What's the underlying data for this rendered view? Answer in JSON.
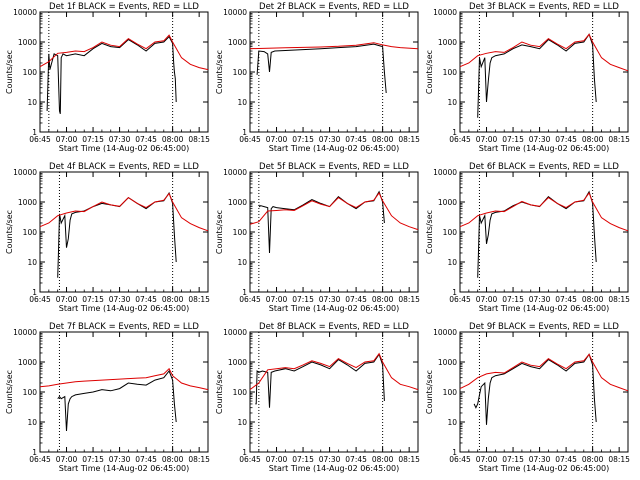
{
  "figure": {
    "panels": [
      {
        "title": "Det 1f BLACK = Events, RED = LLD"
      },
      {
        "title": "Det 2f BLACK = Events, RED = LLD"
      },
      {
        "title": "Det 3f BLACK = Events, RED = LLD"
      },
      {
        "title": "Det 4f BLACK = Events, RED = LLD"
      },
      {
        "title": "Det 5f BLACK = Events, RED = LLD"
      },
      {
        "title": "Det 6f BLACK = Events, RED = LLD"
      },
      {
        "title": "Det 7f BLACK = Events, RED = LLD"
      },
      {
        "title": "Det 8f BLACK = Events, RED = LLD"
      },
      {
        "title": "Det 9f BLACK = Events, RED = LLD"
      }
    ],
    "xlabel": "Start Time (14-Aug-02 06:45:00)",
    "ylabel": "Counts/sec",
    "x_ticks": [
      "06:45",
      "07:00",
      "07:15",
      "07:30",
      "07:45",
      "08:00",
      "08:15"
    ],
    "y_ticks": [
      "1",
      "10",
      "100",
      "1000",
      "10000"
    ],
    "colors": {
      "events": "#000000",
      "lld": "#dd0000",
      "axes": "#000000",
      "background": "#ffffff"
    }
  },
  "chart_data": [
    {
      "type": "line",
      "title": "Det 1f BLACK = Events, RED = LLD",
      "xlabel": "Start Time (14-Aug-02 06:45:00)",
      "ylabel": "Counts/sec",
      "x_unit": "minutes",
      "xlim": [
        0,
        95
      ],
      "ylim": [
        1,
        10000
      ],
      "yscale": "log",
      "markers": [
        5,
        75
      ],
      "series": [
        {
          "name": "Events",
          "color": "#000000",
          "x": [
            4,
            4.5,
            5,
            5.6,
            8,
            10,
            11,
            11.5,
            12,
            13,
            15,
            20,
            25,
            30,
            35,
            40,
            45,
            50,
            55,
            60,
            65,
            70,
            73,
            75,
            75.6,
            76,
            76.5,
            77
          ],
          "y": [
            5,
            50,
            400,
            120,
            400,
            350,
            5,
            4,
            300,
            400,
            350,
            400,
            350,
            600,
            900,
            700,
            650,
            1200,
            800,
            500,
            900,
            1000,
            1500,
            900,
            200,
            100,
            60,
            10
          ]
        },
        {
          "name": "LLD",
          "color": "#dd0000",
          "x": [
            0,
            5,
            10,
            15,
            20,
            25,
            30,
            35,
            40,
            45,
            50,
            55,
            60,
            65,
            70,
            73,
            75,
            80,
            85,
            90,
            95
          ],
          "y": [
            150,
            220,
            420,
            450,
            500,
            480,
            650,
            1000,
            780,
            700,
            1300,
            850,
            600,
            1000,
            1100,
            1700,
            1000,
            300,
            180,
            140,
            120
          ]
        }
      ]
    },
    {
      "type": "line",
      "title": "Det 2f BLACK = Events, RED = LLD",
      "xlabel": "Start Time (14-Aug-02 06:45:00)",
      "ylabel": "Counts/sec",
      "x_unit": "minutes",
      "xlim": [
        0,
        95
      ],
      "ylim": [
        1,
        10000
      ],
      "yscale": "log",
      "markers": [
        5,
        75
      ],
      "series": [
        {
          "name": "Events",
          "color": "#000000",
          "x": [
            4,
            5,
            8,
            10,
            11,
            12,
            14,
            20,
            30,
            40,
            50,
            60,
            70,
            75,
            76,
            77
          ],
          "y": [
            80,
            500,
            480,
            400,
            100,
            450,
            500,
            520,
            560,
            600,
            650,
            700,
            850,
            700,
            100,
            20
          ]
        },
        {
          "name": "LLD",
          "color": "#dd0000",
          "x": [
            0,
            10,
            20,
            30,
            40,
            50,
            60,
            70,
            75,
            80,
            85,
            95
          ],
          "y": [
            600,
            620,
            640,
            660,
            680,
            720,
            780,
            950,
            800,
            700,
            650,
            600
          ]
        }
      ]
    },
    {
      "type": "line",
      "title": "Det 3f BLACK = Events, RED = LLD",
      "xlabel": "Start Time (14-Aug-02 06:45:00)",
      "ylabel": "Counts/sec",
      "x_unit": "minutes",
      "xlim": [
        0,
        95
      ],
      "ylim": [
        1,
        10000
      ],
      "yscale": "log",
      "markers": [
        11,
        75
      ],
      "series": [
        {
          "name": "Events",
          "color": "#000000",
          "x": [
            10,
            10.5,
            11,
            12,
            14,
            15,
            16,
            17,
            18,
            20,
            25,
            30,
            35,
            40,
            45,
            50,
            55,
            60,
            65,
            70,
            73,
            75,
            76,
            77
          ],
          "y": [
            3,
            30,
            300,
            150,
            300,
            10,
            50,
            200,
            300,
            350,
            400,
            600,
            800,
            700,
            600,
            1200,
            800,
            500,
            900,
            1000,
            1800,
            800,
            60,
            10
          ]
        },
        {
          "name": "LLD",
          "color": "#dd0000",
          "x": [
            0,
            5,
            10,
            15,
            20,
            25,
            30,
            35,
            40,
            45,
            50,
            55,
            60,
            65,
            70,
            73,
            75,
            80,
            85,
            90,
            95
          ],
          "y": [
            150,
            200,
            350,
            420,
            480,
            450,
            650,
            1000,
            780,
            700,
            1300,
            850,
            600,
            1000,
            1100,
            1800,
            1000,
            300,
            180,
            140,
            110
          ]
        }
      ]
    },
    {
      "type": "line",
      "title": "Det 4f BLACK = Events, RED = LLD",
      "xlabel": "Start Time (14-Aug-02 06:45:00)",
      "ylabel": "Counts/sec",
      "x_unit": "minutes",
      "xlim": [
        0,
        95
      ],
      "ylim": [
        1,
        10000
      ],
      "yscale": "log",
      "markers": [
        11,
        75
      ],
      "series": [
        {
          "name": "Events",
          "color": "#000000",
          "x": [
            10,
            10.5,
            11,
            12,
            14,
            15,
            16,
            17,
            18,
            20,
            25,
            30,
            35,
            40,
            45,
            50,
            55,
            60,
            65,
            70,
            73,
            75,
            76,
            77
          ],
          "y": [
            3,
            30,
            400,
            200,
            350,
            30,
            60,
            250,
            400,
            450,
            500,
            700,
            900,
            800,
            700,
            1400,
            900,
            600,
            1000,
            1100,
            2000,
            900,
            80,
            10
          ]
        },
        {
          "name": "LLD",
          "color": "#dd0000",
          "x": [
            0,
            5,
            10,
            15,
            20,
            25,
            30,
            35,
            40,
            45,
            50,
            55,
            60,
            65,
            70,
            73,
            75,
            80,
            85,
            90,
            95
          ],
          "y": [
            150,
            200,
            350,
            430,
            500,
            480,
            700,
            1000,
            800,
            720,
            1400,
            900,
            650,
            1000,
            1150,
            1900,
            1000,
            300,
            190,
            140,
            110
          ]
        }
      ]
    },
    {
      "type": "line",
      "title": "Det 5f BLACK = Events, RED = LLD",
      "xlabel": "Start Time (14-Aug-02 06:45:00)",
      "ylabel": "Counts/sec",
      "x_unit": "minutes",
      "xlim": [
        0,
        95
      ],
      "ylim": [
        1,
        10000
      ],
      "yscale": "log",
      "markers": [
        5,
        75
      ],
      "series": [
        {
          "name": "Events",
          "color": "#000000",
          "x": [
            5,
            5.5,
            6,
            8,
            10,
            11,
            12,
            13,
            15,
            20,
            25,
            30,
            35,
            40,
            45,
            50,
            55,
            60,
            65,
            70,
            73,
            75,
            76
          ],
          "y": [
            800,
            700,
            750,
            700,
            650,
            20,
            600,
            700,
            650,
            600,
            550,
            800,
            1200,
            900,
            700,
            1500,
            900,
            600,
            1000,
            1100,
            2200,
            1000,
            200
          ]
        },
        {
          "name": "LLD",
          "color": "#dd0000",
          "x": [
            0,
            5,
            10,
            15,
            20,
            25,
            30,
            35,
            40,
            45,
            50,
            55,
            60,
            65,
            70,
            73,
            75,
            80,
            85,
            90,
            95
          ],
          "y": [
            180,
            220,
            500,
            520,
            550,
            520,
            750,
            1100,
            850,
            700,
            1400,
            900,
            650,
            1000,
            1150,
            2000,
            1100,
            350,
            200,
            150,
            120
          ]
        }
      ]
    },
    {
      "type": "line",
      "title": "Det 6f BLACK = Events, RED = LLD",
      "xlabel": "Start Time (14-Aug-02 06:45:00)",
      "ylabel": "Counts/sec",
      "x_unit": "minutes",
      "xlim": [
        0,
        95
      ],
      "ylim": [
        1,
        10000
      ],
      "yscale": "log",
      "markers": [
        11,
        75
      ],
      "series": [
        {
          "name": "Events",
          "color": "#000000",
          "x": [
            10,
            10.5,
            11,
            12,
            14,
            15,
            16,
            17,
            18,
            20,
            25,
            30,
            35,
            40,
            45,
            50,
            55,
            60,
            65,
            70,
            73,
            75,
            76,
            77
          ],
          "y": [
            3,
            30,
            350,
            200,
            350,
            40,
            80,
            250,
            400,
            450,
            500,
            750,
            1000,
            800,
            700,
            1500,
            900,
            600,
            1000,
            1100,
            2200,
            900,
            80,
            10
          ]
        },
        {
          "name": "LLD",
          "color": "#dd0000",
          "x": [
            0,
            5,
            10,
            15,
            20,
            25,
            30,
            35,
            40,
            45,
            50,
            55,
            60,
            65,
            70,
            73,
            75,
            80,
            85,
            90,
            95
          ],
          "y": [
            150,
            200,
            350,
            430,
            500,
            480,
            700,
            1050,
            800,
            720,
            1400,
            900,
            650,
            1000,
            1150,
            2000,
            1000,
            300,
            190,
            140,
            110
          ]
        }
      ]
    },
    {
      "type": "line",
      "title": "Det 7f BLACK = Events, RED = LLD",
      "xlabel": "Start Time (14-Aug-02 06:45:00)",
      "ylabel": "Counts/sec",
      "x_unit": "minutes",
      "xlim": [
        0,
        95
      ],
      "ylim": [
        1,
        10000
      ],
      "yscale": "log",
      "markers": [
        11,
        75
      ],
      "series": [
        {
          "name": "Events",
          "color": "#000000",
          "x": [
            10,
            11,
            12,
            14,
            15,
            16,
            17,
            18,
            20,
            25,
            30,
            35,
            40,
            45,
            50,
            55,
            60,
            65,
            70,
            73,
            75,
            76,
            77
          ],
          "y": [
            60,
            70,
            60,
            70,
            5,
            40,
            60,
            70,
            80,
            90,
            100,
            120,
            110,
            130,
            200,
            180,
            170,
            250,
            300,
            500,
            250,
            40,
            10
          ]
        },
        {
          "name": "LLD",
          "color": "#dd0000",
          "x": [
            0,
            5,
            10,
            15,
            20,
            25,
            30,
            35,
            40,
            45,
            50,
            55,
            60,
            65,
            70,
            73,
            75,
            80,
            85,
            90,
            95
          ],
          "y": [
            150,
            160,
            180,
            200,
            220,
            230,
            240,
            250,
            260,
            270,
            280,
            290,
            300,
            350,
            400,
            600,
            350,
            200,
            160,
            140,
            120
          ]
        }
      ]
    },
    {
      "type": "line",
      "title": "Det 8f BLACK = Events, RED = LLD",
      "xlabel": "Start Time (14-Aug-02 06:45:00)",
      "ylabel": "Counts/sec",
      "x_unit": "minutes",
      "xlim": [
        0,
        95
      ],
      "ylim": [
        1,
        10000
      ],
      "yscale": "log",
      "markers": [
        5,
        75
      ],
      "series": [
        {
          "name": "Events",
          "color": "#000000",
          "x": [
            3,
            3.5,
            4,
            5,
            7,
            10,
            11,
            12,
            14,
            20,
            25,
            30,
            35,
            40,
            45,
            50,
            55,
            60,
            65,
            70,
            73,
            75,
            76
          ],
          "y": [
            40,
            40,
            500,
            450,
            500,
            450,
            30,
            450,
            500,
            600,
            500,
            700,
            1000,
            800,
            600,
            1200,
            800,
            500,
            900,
            1000,
            1800,
            800,
            50
          ]
        },
        {
          "name": "LLD",
          "color": "#dd0000",
          "x": [
            0,
            5,
            10,
            15,
            20,
            25,
            30,
            35,
            40,
            45,
            50,
            55,
            60,
            65,
            70,
            73,
            75,
            80,
            85,
            90,
            95
          ],
          "y": [
            120,
            200,
            550,
            600,
            650,
            600,
            800,
            1100,
            900,
            700,
            1300,
            900,
            650,
            1000,
            1100,
            1900,
            1000,
            300,
            180,
            150,
            120
          ]
        }
      ]
    },
    {
      "type": "line",
      "title": "Det 9f BLACK = Events, RED = LLD",
      "xlabel": "Start Time (14-Aug-02 06:45:00)",
      "ylabel": "Counts/sec",
      "x_unit": "minutes",
      "xlim": [
        0,
        95
      ],
      "ylim": [
        1,
        10000
      ],
      "yscale": "log",
      "markers": [
        11,
        75
      ],
      "series": [
        {
          "name": "Events",
          "color": "#000000",
          "x": [
            8,
            9,
            10,
            11,
            12,
            14,
            15,
            16,
            17,
            18,
            20,
            25,
            30,
            35,
            40,
            45,
            50,
            55,
            60,
            65,
            70,
            73,
            75,
            76,
            77
          ],
          "y": [
            40,
            30,
            40,
            80,
            150,
            200,
            8,
            60,
            200,
            300,
            350,
            400,
            600,
            900,
            700,
            600,
            1200,
            800,
            500,
            900,
            1000,
            1800,
            800,
            60,
            10
          ]
        },
        {
          "name": "LLD",
          "color": "#dd0000",
          "x": [
            0,
            5,
            10,
            15,
            20,
            25,
            30,
            35,
            40,
            45,
            50,
            55,
            60,
            65,
            70,
            73,
            75,
            80,
            85,
            90,
            95
          ],
          "y": [
            130,
            180,
            300,
            400,
            450,
            430,
            650,
            1000,
            780,
            700,
            1300,
            850,
            600,
            1000,
            1100,
            1800,
            1000,
            300,
            180,
            140,
            110
          ]
        }
      ]
    }
  ]
}
